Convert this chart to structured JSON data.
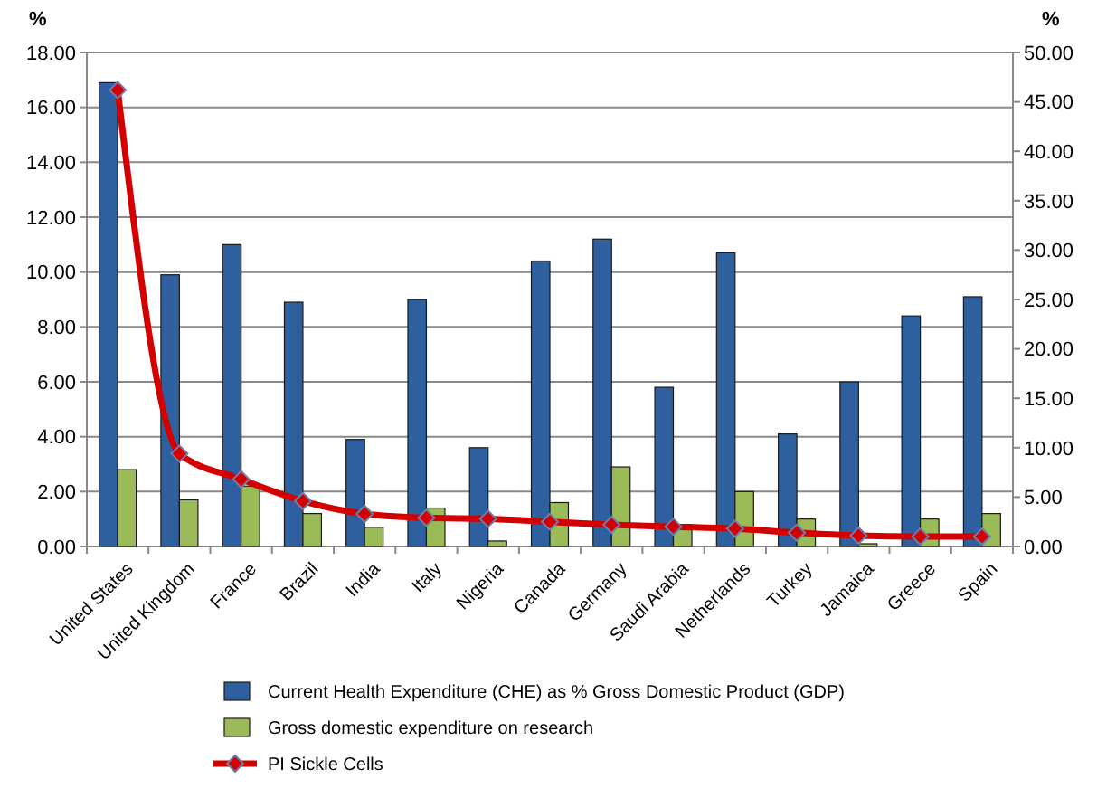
{
  "chart_data": {
    "type": "bar",
    "ylabel": "%",
    "y2label": "%",
    "categories": [
      "United States",
      "United Kingdom",
      "France",
      "Brazil",
      "India",
      "Italy",
      "Nigeria",
      "Canada",
      "Germany",
      "Saudi Arabia",
      "Netherlands",
      "Turkey",
      "Jamaica",
      "Greece",
      "Spain"
    ],
    "series": [
      {
        "name": "Current Health Expenditure (CHE) as % Gross Domestic Product (GDP)",
        "color": "#2e5f9e",
        "values": [
          16.9,
          9.9,
          11.0,
          8.9,
          3.9,
          9.0,
          3.6,
          10.4,
          11.2,
          5.8,
          10.7,
          4.1,
          6.0,
          8.4,
          9.1
        ]
      },
      {
        "name": "Gross domestic expenditure on research",
        "color": "#9bbb59",
        "values": [
          2.8,
          1.7,
          2.2,
          1.2,
          0.7,
          1.4,
          0.2,
          1.6,
          2.9,
          0.8,
          2.0,
          1.0,
          0.1,
          1.0,
          1.2
        ]
      },
      {
        "name": "PI Sickle Cells",
        "type": "line",
        "axis": "y2",
        "color": "#d40000",
        "marker": "diamond",
        "values": [
          46.2,
          9.4,
          6.8,
          4.6,
          3.3,
          2.9,
          2.8,
          2.5,
          2.2,
          2.0,
          1.8,
          1.4,
          1.1,
          1.0,
          1.0
        ]
      }
    ],
    "ylim": [
      0,
      18
    ],
    "yticks": [
      {
        "value": 0,
        "label": "0.00"
      },
      {
        "value": 2,
        "label": "2.00"
      },
      {
        "value": 4,
        "label": "4.00"
      },
      {
        "value": 6,
        "label": "6.00"
      },
      {
        "value": 8,
        "label": "8.00"
      },
      {
        "value": 10,
        "label": "10.00"
      },
      {
        "value": 12,
        "label": "12.00"
      },
      {
        "value": 14,
        "label": "14.00"
      },
      {
        "value": 16,
        "label": "16.00"
      },
      {
        "value": 18,
        "label": "18.00"
      }
    ],
    "y2lim": [
      0,
      50
    ],
    "y2ticks": [
      {
        "value": 0,
        "label": "0.00"
      },
      {
        "value": 5,
        "label": "5.00"
      },
      {
        "value": 10,
        "label": "10.00"
      },
      {
        "value": 15,
        "label": "15.00"
      },
      {
        "value": 20,
        "label": "20.00"
      },
      {
        "value": 25,
        "label": "25.00"
      },
      {
        "value": 30,
        "label": "30.00"
      },
      {
        "value": 35,
        "label": "35.00"
      },
      {
        "value": 40,
        "label": "40.00"
      },
      {
        "value": 45,
        "label": "45.00"
      },
      {
        "value": 50,
        "label": "50.00"
      }
    ],
    "grid": "y",
    "legend": "bottom"
  }
}
